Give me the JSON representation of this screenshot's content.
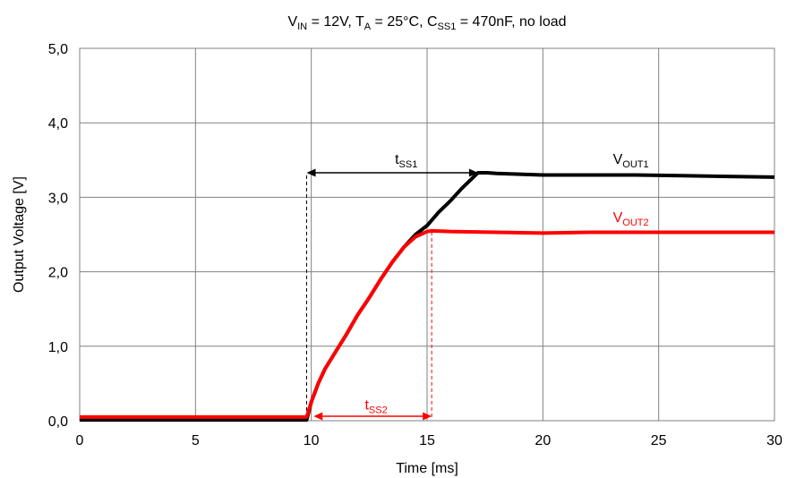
{
  "chart_data": {
    "type": "line",
    "title": {
      "parts": [
        {
          "t": "V"
        },
        {
          "t": "IN",
          "sub": true
        },
        {
          "t": " = 12V, T"
        },
        {
          "t": "A",
          "sub": true
        },
        {
          "t": " = 25°C, C"
        },
        {
          "t": "SS1",
          "sub": true
        },
        {
          "t": " = 470nF, no load"
        }
      ]
    },
    "xlabel": "Time [ms]",
    "ylabel": "Output Voltage   [V]",
    "xlim": [
      0,
      30
    ],
    "ylim": [
      0,
      5
    ],
    "x_ticks": [
      0,
      5,
      10,
      15,
      20,
      25,
      30
    ],
    "x_tick_labels": [
      "0",
      "5",
      "10",
      "15",
      "20",
      "25",
      "30"
    ],
    "y_ticks": [
      0,
      1,
      2,
      3,
      4,
      5
    ],
    "y_tick_labels": [
      "0,0",
      "1,0",
      "2,0",
      "3,0",
      "4,0",
      "5,0"
    ],
    "grid": true,
    "series": [
      {
        "color": "#000000",
        "x": [
          0,
          9.8,
          10.0,
          10.3,
          10.6,
          11.0,
          11.5,
          12.0,
          12.5,
          13.0,
          13.5,
          14.0,
          14.5,
          15.0,
          15.5,
          16.0,
          16.5,
          17.0,
          17.2,
          17.6,
          18.0,
          19.0,
          20.0,
          22.0,
          24.0,
          26.0,
          28.0,
          30.0
        ],
        "y": [
          0.01,
          0.01,
          0.25,
          0.5,
          0.7,
          0.9,
          1.15,
          1.42,
          1.65,
          1.9,
          2.13,
          2.33,
          2.5,
          2.62,
          2.8,
          2.95,
          3.12,
          3.27,
          3.33,
          3.33,
          3.32,
          3.31,
          3.3,
          3.3,
          3.3,
          3.29,
          3.28,
          3.27
        ]
      },
      {
        "color": "#ff0000",
        "x": [
          0,
          9.8,
          10.0,
          10.3,
          10.6,
          11.0,
          11.5,
          12.0,
          12.5,
          13.0,
          13.5,
          14.0,
          14.5,
          15.0,
          15.2,
          16.0,
          18.0,
          20.0,
          22.0,
          25.0,
          28.0,
          30.0
        ],
        "y": [
          0.05,
          0.05,
          0.25,
          0.5,
          0.7,
          0.9,
          1.15,
          1.42,
          1.65,
          1.9,
          2.13,
          2.33,
          2.47,
          2.54,
          2.55,
          2.54,
          2.53,
          2.52,
          2.53,
          2.53,
          2.53,
          2.53
        ]
      }
    ],
    "annotations": [
      {
        "id": "tss1",
        "color": "#000000",
        "x_from": 9.8,
        "x_to": 17.2,
        "y": 3.33,
        "label": {
          "main": "t",
          "sub": "SS1"
        },
        "label_at": [
          14.1,
          3.45
        ]
      },
      {
        "id": "tss2",
        "color": "#ff0000",
        "x_from": 10.1,
        "x_to": 15.2,
        "y": 0.06,
        "label": {
          "main": "t",
          "sub": "SS2"
        },
        "label_at": [
          12.8,
          0.15
        ]
      }
    ],
    "guides": [
      {
        "color": "#000000",
        "x": 9.8,
        "y_from": 0.05,
        "y_to": 3.33
      },
      {
        "color": "#ff0000",
        "x": 15.2,
        "y_from": 0.05,
        "y_to": 2.55
      }
    ],
    "series_labels": [
      {
        "color": "#000000",
        "main": "V",
        "sub": "OUT1",
        "at": [
          23.8,
          3.45
        ]
      },
      {
        "color": "#ff0000",
        "main": "V",
        "sub": "OUT2",
        "at": [
          23.8,
          2.67
        ]
      }
    ]
  }
}
